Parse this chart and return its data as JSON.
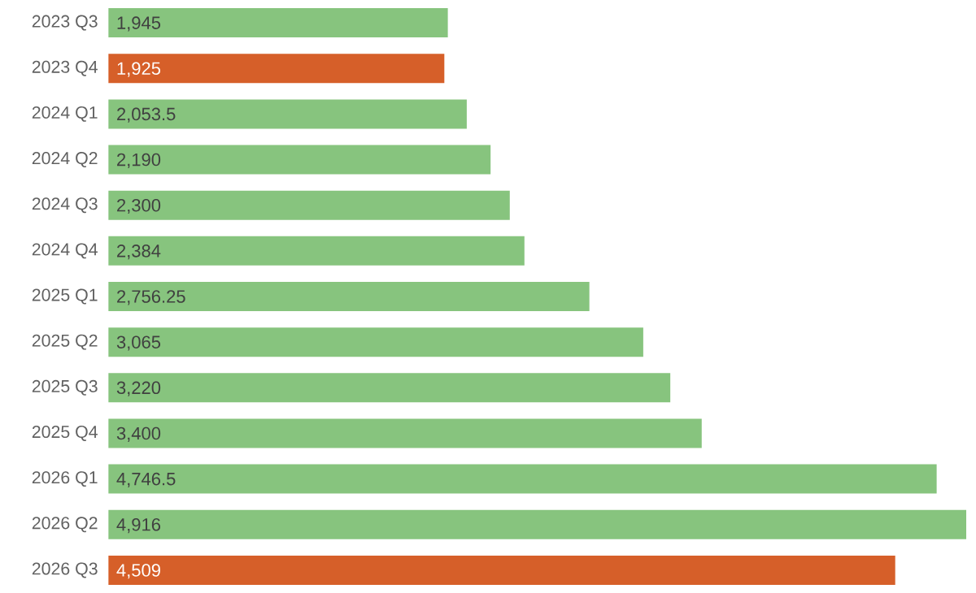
{
  "chart_data": {
    "type": "bar",
    "orientation": "horizontal",
    "categories": [
      "2023 Q3",
      "2023 Q4",
      "2024 Q1",
      "2024 Q2",
      "2024 Q3",
      "2024 Q4",
      "2025 Q1",
      "2025 Q2",
      "2025 Q3",
      "2025 Q4",
      "2026 Q1",
      "2026 Q2",
      "2026 Q3"
    ],
    "values": [
      1945,
      1925,
      2053.5,
      2190,
      2300,
      2384,
      2756.25,
      3065,
      3220,
      3400,
      4746.5,
      4916,
      4509
    ],
    "value_labels": [
      "1,945",
      "1,925",
      "2,053.5",
      "2,190",
      "2,300",
      "2,384",
      "2,756.25",
      "3,065",
      "3,220",
      "3,400",
      "4,746.5",
      "4,916",
      "4,509"
    ],
    "colors": [
      "#87c47e",
      "#d65f29",
      "#87c47e",
      "#87c47e",
      "#87c47e",
      "#87c47e",
      "#87c47e",
      "#87c47e",
      "#87c47e",
      "#87c47e",
      "#87c47e",
      "#87c47e",
      "#d65f29"
    ],
    "xlim": [
      0,
      4916
    ],
    "tick_labels": "y"
  }
}
